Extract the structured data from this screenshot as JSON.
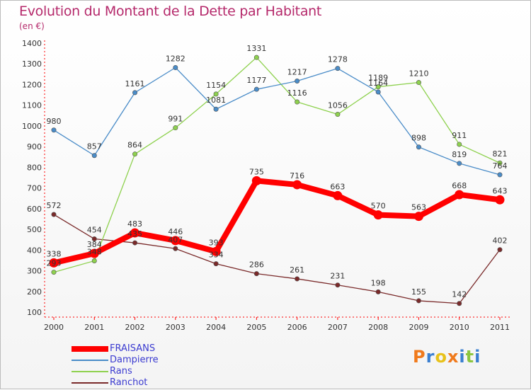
{
  "title": "Evolution du Montant de la Dette par Habitant",
  "subtitle": "(en €)",
  "logo": {
    "text": "Proxiti",
    "letter_colors": [
      "#f07a1c",
      "#3a7fd0",
      "#e8c21a",
      "#f07a1c",
      "#3a7fd0",
      "#8cc63f",
      "#3a7fd0"
    ]
  },
  "chart_data": {
    "type": "line",
    "title": "Evolution du Montant de la Dette par Habitant",
    "ylabel": "(en €)",
    "xlabel": "",
    "x": [
      "2000",
      "2001",
      "2002",
      "2003",
      "2004",
      "2005",
      "2006",
      "2007",
      "2008",
      "2009",
      "2010",
      "2011"
    ],
    "ylim": [
      100,
      1400
    ],
    "yticks": [
      "100",
      "200",
      "300",
      "400",
      "500",
      "600",
      "700",
      "800",
      "900",
      "1000",
      "1100",
      "1200",
      "1300",
      "1400"
    ],
    "grid": false,
    "legend_position": "bottom-left",
    "series": [
      {
        "name": "FRAISANS",
        "color": "#ff0000",
        "values": [
          338,
          384,
          483,
          446,
          393,
          735,
          716,
          663,
          570,
          563,
          668,
          643
        ],
        "labels": [
          "338",
          "384",
          "483",
          "446",
          "393",
          "735",
          "716",
          "663",
          "570",
          "563",
          "668",
          "643"
        ]
      },
      {
        "name": "Dampierre",
        "color": "#4a8cc8",
        "values": [
          980,
          857,
          1161,
          1282,
          1081,
          1177,
          1217,
          1278,
          1164,
          898,
          819,
          764
        ],
        "labels": [
          "980",
          "857",
          "1161",
          "1282",
          "1081",
          "1177",
          "1217",
          "1278",
          "1164",
          "898",
          "819",
          "764"
        ]
      },
      {
        "name": "Rans",
        "color": "#8ed14e",
        "values": [
          293,
          348,
          864,
          991,
          1154,
          1331,
          1116,
          1056,
          1189,
          1210,
          911,
          821
        ],
        "labels": [
          "293",
          "348",
          "864",
          "991",
          "1154",
          "1331",
          "1116",
          "1056",
          "1189",
          "1210",
          "911",
          "821"
        ]
      },
      {
        "name": "Ranchot",
        "color": "#7a2a2a",
        "values": [
          572,
          454,
          435,
          407,
          334,
          286,
          261,
          231,
          198,
          155,
          142,
          402
        ],
        "labels": [
          "572",
          "454",
          "435",
          "407",
          "334",
          "286",
          "261",
          "231",
          "198",
          "155",
          "142",
          "402"
        ]
      }
    ]
  }
}
